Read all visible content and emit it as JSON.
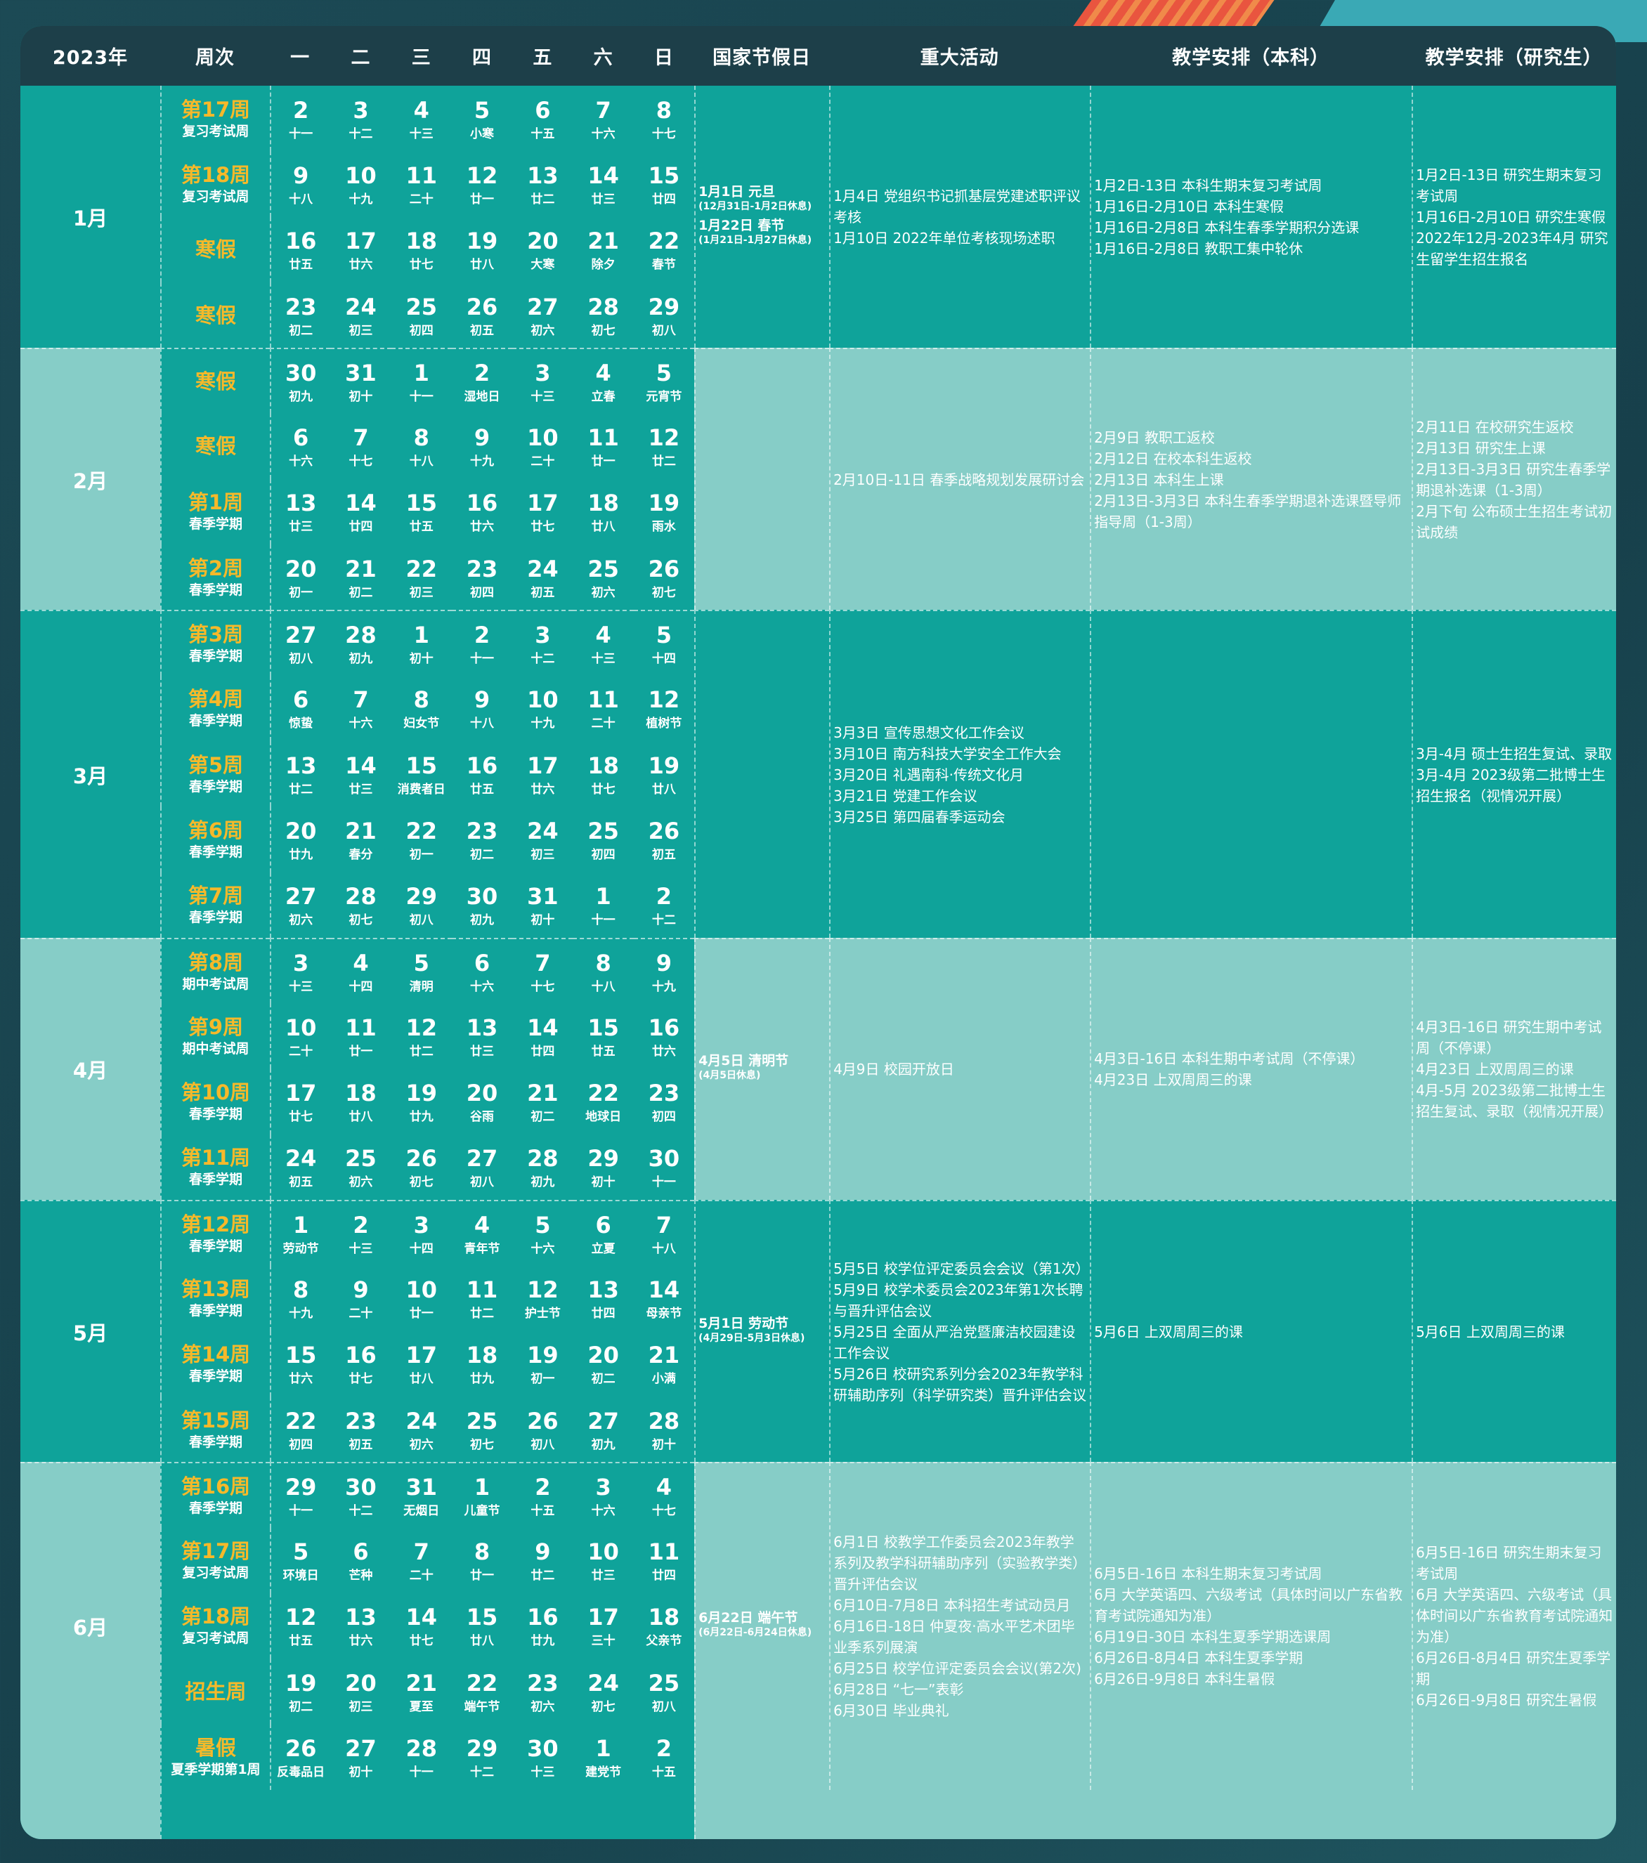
{
  "header": [
    "2023年",
    "周次",
    "一",
    "二",
    "三",
    "四",
    "五",
    "六",
    "日",
    "国家节假日",
    "重大活动",
    "教学安排（本科）",
    "教学安排（研究生）"
  ],
  "colors": {
    "dark": "#0fa39a",
    "light": "#86cdc7",
    "header": "#1d3f49",
    "week_label": "#f6b92a"
  },
  "months": [
    {
      "name": "1月",
      "weeks": [
        {
          "label": "第17周",
          "sub": "复习考试周",
          "days": [
            "2",
            "3",
            "4",
            "5",
            "6",
            "7",
            "8"
          ],
          "lunar": [
            "十一",
            "十二",
            "十三",
            "小寒",
            "十五",
            "十六",
            "十七"
          ]
        },
        {
          "label": "第18周",
          "sub": "复习考试周",
          "days": [
            "9",
            "10",
            "11",
            "12",
            "13",
            "14",
            "15"
          ],
          "lunar": [
            "十八",
            "十九",
            "二十",
            "廿一",
            "廿二",
            "廿三",
            "廿四"
          ]
        },
        {
          "label": "寒假",
          "sub": "",
          "days": [
            "16",
            "17",
            "18",
            "19",
            "20",
            "21",
            "22"
          ],
          "lunar": [
            "廿五",
            "廿六",
            "廿七",
            "廿八",
            "大寒",
            "除夕",
            "春节"
          ]
        },
        {
          "label": "寒假",
          "sub": "",
          "days": [
            "23",
            "24",
            "25",
            "26",
            "27",
            "28",
            "29"
          ],
          "lunar": [
            "初二",
            "初三",
            "初四",
            "初五",
            "初六",
            "初七",
            "初八"
          ]
        }
      ],
      "holidays": [
        {
          "name": "1月1日  元旦",
          "note": "(12月31日-1月2日休息)"
        },
        {
          "name": "1月22日  春节",
          "note": "(1月21日-1月27日休息)"
        }
      ],
      "activities": [
        "1月4日  党组织书记抓基层党建述职评议考核",
        "1月10日  2022年单位考核现场述职"
      ],
      "undergrad": [
        "1月2日-13日  本科生期末复习考试周",
        "1月16日-2月10日  本科生寒假",
        "1月16日-2月8日  本科生春季学期积分选课",
        "1月16日-2月8日  教职工集中轮休"
      ],
      "grad": [
        "1月2日-13日  研究生期末复习考试周",
        "1月16日-2月10日  研究生寒假",
        "2022年12月-2023年4月  研究生留学生招生报名"
      ]
    },
    {
      "name": "2月",
      "weeks": [
        {
          "label": "寒假",
          "sub": "",
          "days": [
            "30",
            "31",
            "1",
            "2",
            "3",
            "4",
            "5"
          ],
          "lunar": [
            "初九",
            "初十",
            "十一",
            "湿地日",
            "十三",
            "立春",
            "元宵节"
          ]
        },
        {
          "label": "寒假",
          "sub": "",
          "days": [
            "6",
            "7",
            "8",
            "9",
            "10",
            "11",
            "12"
          ],
          "lunar": [
            "十六",
            "十七",
            "十八",
            "十九",
            "二十",
            "廿一",
            "廿二"
          ]
        },
        {
          "label": "第1周",
          "sub": "春季学期",
          "days": [
            "13",
            "14",
            "15",
            "16",
            "17",
            "18",
            "19"
          ],
          "lunar": [
            "廿三",
            "廿四",
            "廿五",
            "廿六",
            "廿七",
            "廿八",
            "雨水"
          ]
        },
        {
          "label": "第2周",
          "sub": "春季学期",
          "days": [
            "20",
            "21",
            "22",
            "23",
            "24",
            "25",
            "26"
          ],
          "lunar": [
            "初一",
            "初二",
            "初三",
            "初四",
            "初五",
            "初六",
            "初七"
          ]
        }
      ],
      "holidays": [],
      "activities": [
        "2月10日-11日  春季战略规划发展研讨会"
      ],
      "undergrad": [
        "2月9日  教职工返校",
        "2月12日  在校本科生返校",
        "2月13日  本科生上课",
        "2月13日-3月3日  本科生春季学期退补选课暨导师指导周（1-3周）"
      ],
      "grad": [
        "2月11日  在校研究生返校",
        "2月13日  研究生上课",
        "2月13日-3月3日  研究生春季学期退补选课（1-3周）",
        "2月下旬  公布硕士生招生考试初试成绩"
      ]
    },
    {
      "name": "3月",
      "weeks": [
        {
          "label": "第3周",
          "sub": "春季学期",
          "days": [
            "27",
            "28",
            "1",
            "2",
            "3",
            "4",
            "5"
          ],
          "lunar": [
            "初八",
            "初九",
            "初十",
            "十一",
            "十二",
            "十三",
            "十四"
          ]
        },
        {
          "label": "第4周",
          "sub": "春季学期",
          "days": [
            "6",
            "7",
            "8",
            "9",
            "10",
            "11",
            "12"
          ],
          "lunar": [
            "惊蛰",
            "十六",
            "妇女节",
            "十八",
            "十九",
            "二十",
            "植树节"
          ]
        },
        {
          "label": "第5周",
          "sub": "春季学期",
          "days": [
            "13",
            "14",
            "15",
            "16",
            "17",
            "18",
            "19"
          ],
          "lunar": [
            "廿二",
            "廿三",
            "消费者日",
            "廿五",
            "廿六",
            "廿七",
            "廿八"
          ]
        },
        {
          "label": "第6周",
          "sub": "春季学期",
          "days": [
            "20",
            "21",
            "22",
            "23",
            "24",
            "25",
            "26"
          ],
          "lunar": [
            "廿九",
            "春分",
            "初一",
            "初二",
            "初三",
            "初四",
            "初五"
          ]
        },
        {
          "label": "第7周",
          "sub": "春季学期",
          "days": [
            "27",
            "28",
            "29",
            "30",
            "31",
            "1",
            "2"
          ],
          "lunar": [
            "初六",
            "初七",
            "初八",
            "初九",
            "初十",
            "十一",
            "十二"
          ]
        }
      ],
      "holidays": [],
      "activities": [
        "3月3日  宣传思想文化工作会议",
        "3月10日  南方科技大学安全工作大会",
        "3月20日 礼遇南科·传统文化月",
        "3月21日  党建工作会议",
        "3月25日  第四届春季运动会"
      ],
      "undergrad": [],
      "grad": [
        "3月-4月  硕士生招生复试、录取",
        "3月-4月  2023级第二批博士生招生报名（视情况开展）"
      ]
    },
    {
      "name": "4月",
      "weeks": [
        {
          "label": "第8周",
          "sub": "期中考试周",
          "days": [
            "3",
            "4",
            "5",
            "6",
            "7",
            "8",
            "9"
          ],
          "lunar": [
            "十三",
            "十四",
            "清明",
            "十六",
            "十七",
            "十八",
            "十九"
          ]
        },
        {
          "label": "第9周",
          "sub": "期中考试周",
          "days": [
            "10",
            "11",
            "12",
            "13",
            "14",
            "15",
            "16"
          ],
          "lunar": [
            "二十",
            "廿一",
            "廿二",
            "廿三",
            "廿四",
            "廿五",
            "廿六"
          ]
        },
        {
          "label": "第10周",
          "sub": "春季学期",
          "days": [
            "17",
            "18",
            "19",
            "20",
            "21",
            "22",
            "23"
          ],
          "lunar": [
            "廿七",
            "廿八",
            "廿九",
            "谷雨",
            "初二",
            "地球日",
            "初四"
          ]
        },
        {
          "label": "第11周",
          "sub": "春季学期",
          "days": [
            "24",
            "25",
            "26",
            "27",
            "28",
            "29",
            "30"
          ],
          "lunar": [
            "初五",
            "初六",
            "初七",
            "初八",
            "初九",
            "初十",
            "十一"
          ]
        }
      ],
      "holidays": [
        {
          "name": "4月5日  清明节",
          "note": "(4月5日休息)"
        }
      ],
      "activities": [
        "4月9日  校园开放日"
      ],
      "undergrad": [
        "4月3日-16日  本科生期中考试周（不停课）",
        "4月23日  上双周周三的课"
      ],
      "grad": [
        "4月3日-16日  研究生期中考试周（不停课）",
        "4月23日  上双周周三的课",
        "4月-5月  2023级第二批博士生招生复试、录取（视情况开展）"
      ]
    },
    {
      "name": "5月",
      "weeks": [
        {
          "label": "第12周",
          "sub": "春季学期",
          "days": [
            "1",
            "2",
            "3",
            "4",
            "5",
            "6",
            "7"
          ],
          "lunar": [
            "劳动节",
            "十三",
            "十四",
            "青年节",
            "十六",
            "立夏",
            "十八"
          ]
        },
        {
          "label": "第13周",
          "sub": "春季学期",
          "days": [
            "8",
            "9",
            "10",
            "11",
            "12",
            "13",
            "14"
          ],
          "lunar": [
            "十九",
            "二十",
            "廿一",
            "廿二",
            "护士节",
            "廿四",
            "母亲节"
          ]
        },
        {
          "label": "第14周",
          "sub": "春季学期",
          "days": [
            "15",
            "16",
            "17",
            "18",
            "19",
            "20",
            "21"
          ],
          "lunar": [
            "廿六",
            "廿七",
            "廿八",
            "廿九",
            "初一",
            "初二",
            "小满"
          ]
        },
        {
          "label": "第15周",
          "sub": "春季学期",
          "days": [
            "22",
            "23",
            "24",
            "25",
            "26",
            "27",
            "28"
          ],
          "lunar": [
            "初四",
            "初五",
            "初六",
            "初七",
            "初八",
            "初九",
            "初十"
          ]
        }
      ],
      "holidays": [
        {
          "name": "5月1日  劳动节",
          "note": "(4月29日-5月3日休息)"
        }
      ],
      "activities": [
        "5月5日  校学位评定委员会会议（第1次）",
        "5月9日  校学术委员会2023年第1次长聘与晋升评估会议",
        "5月25日 全面从严治党暨廉洁校园建设工作会议",
        "5月26日  校研究系列分会2023年教学科研辅助序列（科学研究类）晋升评估会议"
      ],
      "undergrad": [
        "5月6日  上双周周三的课"
      ],
      "grad": [
        "5月6日  上双周周三的课"
      ]
    },
    {
      "name": "6月",
      "weeks": [
        {
          "label": "第16周",
          "sub": "春季学期",
          "days": [
            "29",
            "30",
            "31",
            "1",
            "2",
            "3",
            "4"
          ],
          "lunar": [
            "十一",
            "十二",
            "无烟日",
            "儿童节",
            "十五",
            "十六",
            "十七"
          ]
        },
        {
          "label": "第17周",
          "sub": "复习考试周",
          "days": [
            "5",
            "6",
            "7",
            "8",
            "9",
            "10",
            "11"
          ],
          "lunar": [
            "环境日",
            "芒种",
            "二十",
            "廿一",
            "廿二",
            "廿三",
            "廿四"
          ]
        },
        {
          "label": "第18周",
          "sub": "复习考试周",
          "days": [
            "12",
            "13",
            "14",
            "15",
            "16",
            "17",
            "18"
          ],
          "lunar": [
            "廿五",
            "廿六",
            "廿七",
            "廿八",
            "廿九",
            "三十",
            "父亲节"
          ]
        },
        {
          "label": "招生周",
          "sub": "",
          "days": [
            "19",
            "20",
            "21",
            "22",
            "23",
            "24",
            "25"
          ],
          "lunar": [
            "初二",
            "初三",
            "夏至",
            "端午节",
            "初六",
            "初七",
            "初八"
          ]
        },
        {
          "label": "暑假",
          "sub": "夏季学期第1周",
          "days": [
            "26",
            "27",
            "28",
            "29",
            "30",
            "1",
            "2"
          ],
          "lunar": [
            "反毒品日",
            "初十",
            "十一",
            "十二",
            "十三",
            "建党节",
            "十五"
          ]
        }
      ],
      "holidays": [
        {
          "name": "6月22日  端午节",
          "note": "(6月22日-6月24日休息)"
        }
      ],
      "activities": [
        "6月1日  校教学工作委员会2023年教学系列及教学科研辅助序列（实验教学类）晋升评估会议",
        "6月10日-7月8日  本科招生考试动员月",
        "6月16日-18日  仲夏夜·高水平艺术团毕业季系列展演",
        "6月25日  校学位评定委员会会议(第2次)",
        "6月28日  “七一”表彰",
        "6月30日  毕业典礼"
      ],
      "undergrad": [
        "6月5日-16日  本科生期末复习考试周",
        "6月  大学英语四、六级考试（具体时间以广东省教育考试院通知为准）",
        "6月19日-30日  本科生夏季学期选课周",
        "6月26日-8月4日  本科生夏季学期",
        "6月26日-9月8日  本科生暑假"
      ],
      "grad": [
        "6月5日-16日  研究生期末复习考试周",
        "6月  大学英语四、六级考试（具体时间以广东省教育考试院通知为准）",
        "6月26日-8月4日  研究生夏季学期",
        "6月26日-9月8日  研究生暑假"
      ]
    }
  ]
}
